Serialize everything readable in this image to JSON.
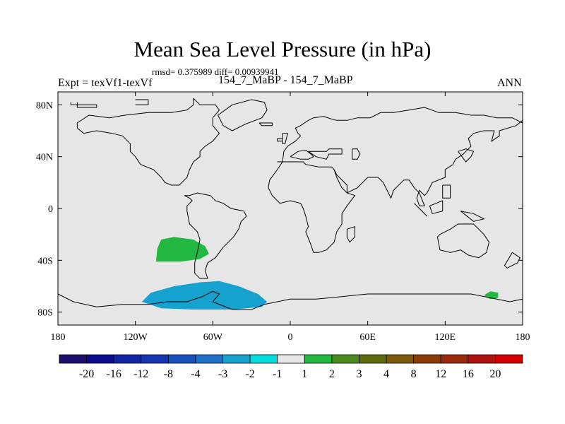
{
  "header": {
    "title": "Mean Sea Level Pressure (in hPa)",
    "stats": "rmsd= 0.375989 diff= 0.00939941",
    "experiment": "Expt = texVf1-texVf",
    "case": "154_7_MaBP - 154_7_MaBP",
    "season": "ANN"
  },
  "chart_data": {
    "type": "heatmap",
    "title": "Mean Sea Level Pressure (in hPa)",
    "projection": "cylindrical equidistant",
    "xlim": [
      -180,
      180
    ],
    "ylim": [
      -90,
      90
    ],
    "x_ticks": [
      {
        "value": -180,
        "label": "180"
      },
      {
        "value": -120,
        "label": "120W"
      },
      {
        "value": -60,
        "label": "60W"
      },
      {
        "value": 0,
        "label": "0"
      },
      {
        "value": 60,
        "label": "60E"
      },
      {
        "value": 120,
        "label": "120E"
      },
      {
        "value": 180,
        "label": "180"
      }
    ],
    "y_ticks": [
      {
        "value": 80,
        "label": "80N"
      },
      {
        "value": 40,
        "label": "40N"
      },
      {
        "value": 0,
        "label": "0"
      },
      {
        "value": -40,
        "label": "40S"
      },
      {
        "value": -80,
        "label": "80S"
      }
    ],
    "background_class": "-1 to 1",
    "anomaly_regions": [
      {
        "name": "south-pacific-positive",
        "class": "1 to 2",
        "polygon": [
          [
            -104,
            -41
          ],
          [
            -103,
            -31
          ],
          [
            -100,
            -24
          ],
          [
            -90,
            -22
          ],
          [
            -75,
            -24
          ],
          [
            -66,
            -29
          ],
          [
            -63,
            -35
          ],
          [
            -70,
            -39
          ],
          [
            -85,
            -41
          ]
        ]
      },
      {
        "name": "southern-ocean-negative",
        "class": "-3 to -2",
        "polygon": [
          [
            -115,
            -72
          ],
          [
            -108,
            -65
          ],
          [
            -90,
            -60
          ],
          [
            -70,
            -57
          ],
          [
            -55,
            -56
          ],
          [
            -40,
            -60
          ],
          [
            -25,
            -66
          ],
          [
            -18,
            -72
          ],
          [
            -22,
            -76
          ],
          [
            -45,
            -78
          ],
          [
            -75,
            -78
          ],
          [
            -100,
            -77
          ]
        ]
      },
      {
        "name": "southwest-pacific-positive",
        "class": "1 to 2",
        "polygon": [
          [
            150,
            -67
          ],
          [
            155,
            -64
          ],
          [
            161,
            -65
          ],
          [
            161,
            -69
          ],
          [
            155,
            -70
          ]
        ]
      }
    ],
    "colorbar": {
      "boundaries": [
        "-20",
        "-16",
        "-12",
        "-8",
        "-4",
        "-3",
        "-2",
        "-1",
        "1",
        "2",
        "3",
        "4",
        "8",
        "12",
        "16",
        "20"
      ],
      "colors": [
        "#1c0f6b",
        "#0a0a8c",
        "#1226a3",
        "#1536b0",
        "#1a50bd",
        "#1f70c9",
        "#15a2cf",
        "#00dede",
        "#e6e6e6",
        "#22b842",
        "#4a8a1e",
        "#5f6b0f",
        "#7a5a0a",
        "#8a3c08",
        "#992a0a",
        "#b01010",
        "#d60000"
      ]
    },
    "coastlines": [
      [
        [
          -165,
          82
        ],
        [
          -165,
          78
        ],
        [
          -150,
          78
        ],
        [
          -150,
          80
        ],
        [
          -170,
          80
        ],
        [
          -170,
          82
        ]
      ],
      [
        [
          -120,
          80
        ],
        [
          -110,
          80
        ],
        [
          -110,
          84
        ],
        [
          -120,
          84
        ]
      ],
      [
        [
          -75,
          85
        ],
        [
          -70,
          80
        ],
        [
          -58,
          80
        ],
        [
          -55,
          76
        ],
        [
          -60,
          70
        ],
        [
          -60,
          64
        ],
        [
          -55,
          58
        ],
        [
          -60,
          52
        ],
        [
          -66,
          48
        ],
        [
          -70,
          44
        ],
        [
          -70,
          40
        ],
        [
          -75,
          36
        ],
        [
          -78,
          30
        ],
        [
          -80,
          24
        ],
        [
          -86,
          18
        ],
        [
          -92,
          18
        ],
        [
          -97,
          20
        ],
        [
          -100,
          24
        ],
        [
          -106,
          30
        ],
        [
          -116,
          34
        ],
        [
          -120,
          40
        ],
        [
          -124,
          44
        ],
        [
          -124,
          50
        ],
        [
          -130,
          56
        ],
        [
          -138,
          58
        ],
        [
          -150,
          60
        ],
        [
          -160,
          58
        ],
        [
          -165,
          62
        ],
        [
          -165,
          66
        ],
        [
          -156,
          72
        ],
        [
          -140,
          70
        ],
        [
          -128,
          72
        ],
        [
          -110,
          74
        ],
        [
          -92,
          74
        ],
        [
          -80,
          76
        ],
        [
          -75,
          80
        ],
        [
          -75,
          85
        ]
      ],
      [
        [
          -82,
          10
        ],
        [
          -78,
          8
        ],
        [
          -76,
          6
        ],
        [
          -80,
          2
        ],
        [
          -80,
          -2
        ],
        [
          -78,
          -12
        ],
        [
          -72,
          -18
        ],
        [
          -70,
          -24
        ],
        [
          -72,
          -34
        ],
        [
          -74,
          -42
        ],
        [
          -74,
          -50
        ],
        [
          -70,
          -54
        ],
        [
          -64,
          -54
        ],
        [
          -66,
          -48
        ],
        [
          -64,
          -42
        ],
        [
          -58,
          -38
        ],
        [
          -52,
          -30
        ],
        [
          -44,
          -22
        ],
        [
          -40,
          -16
        ],
        [
          -38,
          -10
        ],
        [
          -34,
          -6
        ],
        [
          -36,
          -2
        ],
        [
          -46,
          0
        ],
        [
          -52,
          4
        ],
        [
          -58,
          6
        ],
        [
          -62,
          10
        ],
        [
          -72,
          12
        ],
        [
          -78,
          10
        ],
        [
          -82,
          10
        ]
      ],
      [
        [
          -45,
          80
        ],
        [
          -30,
          84
        ],
        [
          -20,
          82
        ],
        [
          -18,
          76
        ],
        [
          -22,
          70
        ],
        [
          -35,
          65
        ],
        [
          -45,
          60
        ],
        [
          -52,
          64
        ],
        [
          -56,
          72
        ],
        [
          -45,
          80
        ]
      ],
      [
        [
          -24,
          66
        ],
        [
          -22,
          64
        ],
        [
          -14,
          64
        ],
        [
          -14,
          66
        ],
        [
          -24,
          66
        ]
      ],
      [
        [
          -6,
          58
        ],
        [
          -2,
          58
        ],
        [
          -4,
          50
        ],
        [
          -6,
          50
        ],
        [
          -6,
          58
        ]
      ],
      [
        [
          -10,
          54
        ],
        [
          -6,
          54
        ],
        [
          -6,
          52
        ],
        [
          -10,
          52
        ],
        [
          -10,
          54
        ]
      ],
      [
        [
          -10,
          36
        ],
        [
          -6,
          36
        ],
        [
          -5,
          44
        ],
        [
          -2,
          48
        ],
        [
          4,
          52
        ],
        [
          8,
          56
        ],
        [
          6,
          58
        ],
        [
          4,
          62
        ],
        [
          8,
          64
        ],
        [
          14,
          68
        ],
        [
          18,
          70
        ],
        [
          26,
          71
        ],
        [
          32,
          69
        ],
        [
          36,
          68
        ],
        [
          44,
          68
        ],
        [
          52,
          70
        ],
        [
          62,
          70
        ],
        [
          70,
          74
        ],
        [
          80,
          74
        ],
        [
          92,
          76
        ],
        [
          104,
          78
        ],
        [
          115,
          74
        ],
        [
          128,
          74
        ],
        [
          140,
          72
        ],
        [
          150,
          72
        ],
        [
          160,
          70
        ],
        [
          172,
          70
        ],
        [
          180,
          66
        ]
      ],
      [
        [
          180,
          68
        ],
        [
          175,
          64
        ],
        [
          162,
          60
        ],
        [
          162,
          56
        ],
        [
          156,
          52
        ],
        [
          158,
          60
        ],
        [
          150,
          60
        ],
        [
          142,
          58
        ],
        [
          138,
          54
        ],
        [
          140,
          48
        ],
        [
          134,
          42
        ],
        [
          128,
          38
        ],
        [
          126,
          34
        ],
        [
          120,
          30
        ],
        [
          120,
          24
        ],
        [
          110,
          20
        ],
        [
          106,
          12
        ],
        [
          104,
          10
        ],
        [
          100,
          14
        ],
        [
          98,
          8
        ],
        [
          100,
          2
        ],
        [
          104,
          2
        ],
        [
          100,
          12
        ],
        [
          96,
          16
        ],
        [
          92,
          22
        ],
        [
          88,
          22
        ],
        [
          80,
          14
        ],
        [
          78,
          8
        ],
        [
          72,
          20
        ],
        [
          68,
          24
        ],
        [
          60,
          24
        ],
        [
          58,
          22
        ],
        [
          52,
          16
        ],
        [
          44,
          12
        ],
        [
          44,
          18
        ],
        [
          36,
          26
        ],
        [
          34,
          30
        ]
      ],
      [
        [
          34,
          30
        ],
        [
          32,
          32
        ],
        [
          22,
          32
        ],
        [
          12,
          34
        ],
        [
          10,
          36
        ],
        [
          -2,
          36
        ],
        [
          -8,
          36
        ],
        [
          -10,
          36
        ]
      ],
      [
        [
          -6,
          36
        ],
        [
          -10,
          30
        ],
        [
          -16,
          22
        ],
        [
          -17,
          16
        ],
        [
          -14,
          10
        ],
        [
          -8,
          4
        ],
        [
          0,
          6
        ],
        [
          8,
          4
        ],
        [
          10,
          0
        ],
        [
          12,
          -6
        ],
        [
          14,
          -14
        ],
        [
          12,
          -18
        ],
        [
          16,
          -28
        ],
        [
          18,
          -34
        ],
        [
          22,
          -34
        ],
        [
          28,
          -32
        ],
        [
          34,
          -26
        ],
        [
          36,
          -18
        ],
        [
          40,
          -12
        ],
        [
          40,
          -4
        ],
        [
          44,
          2
        ],
        [
          50,
          10
        ],
        [
          44,
          12
        ],
        [
          40,
          16
        ],
        [
          36,
          24
        ],
        [
          34,
          30
        ]
      ],
      [
        [
          44,
          -16
        ],
        [
          50,
          -14
        ],
        [
          50,
          -22
        ],
        [
          46,
          -26
        ],
        [
          44,
          -22
        ],
        [
          44,
          -16
        ]
      ],
      [
        [
          0,
          40
        ],
        [
          6,
          44
        ],
        [
          12,
          45
        ],
        [
          16,
          42
        ],
        [
          18,
          40
        ],
        [
          14,
          38
        ],
        [
          8,
          38
        ],
        [
          0,
          40
        ]
      ],
      [
        [
          14,
          44
        ],
        [
          20,
          40
        ],
        [
          28,
          38
        ],
        [
          30,
          42
        ],
        [
          40,
          42
        ],
        [
          40,
          46
        ],
        [
          30,
          46
        ],
        [
          28,
          44
        ],
        [
          14,
          44
        ]
      ],
      [
        [
          48,
          46
        ],
        [
          52,
          46
        ],
        [
          54,
          42
        ],
        [
          52,
          38
        ],
        [
          48,
          38
        ],
        [
          48,
          46
        ]
      ],
      [
        [
          130,
          44
        ],
        [
          136,
          36
        ],
        [
          140,
          40
        ],
        [
          142,
          44
        ],
        [
          136,
          46
        ],
        [
          130,
          44
        ]
      ],
      [
        [
          114,
          -22
        ],
        [
          116,
          -32
        ],
        [
          124,
          -34
        ],
        [
          132,
          -32
        ],
        [
          138,
          -36
        ],
        [
          146,
          -38
        ],
        [
          152,
          -34
        ],
        [
          154,
          -26
        ],
        [
          150,
          -20
        ],
        [
          146,
          -16
        ],
        [
          142,
          -12
        ],
        [
          136,
          -12
        ],
        [
          130,
          -12
        ],
        [
          124,
          -16
        ],
        [
          116,
          -20
        ],
        [
          114,
          -22
        ]
      ],
      [
        [
          172,
          -34
        ],
        [
          178,
          -38
        ],
        [
          176,
          -42
        ],
        [
          168,
          -46
        ],
        [
          166,
          -44
        ],
        [
          172,
          -34
        ]
      ],
      [
        [
          96,
          4
        ],
        [
          104,
          -4
        ],
        [
          106,
          -6
        ],
        [
          100,
          0
        ],
        [
          96,
          4
        ]
      ],
      [
        [
          108,
          2
        ],
        [
          118,
          6
        ],
        [
          118,
          -2
        ],
        [
          110,
          -4
        ],
        [
          108,
          2
        ]
      ],
      [
        [
          132,
          -2
        ],
        [
          142,
          -4
        ],
        [
          150,
          -8
        ],
        [
          142,
          -10
        ],
        [
          132,
          -2
        ]
      ],
      [
        [
          118,
          18
        ],
        [
          124,
          18
        ],
        [
          124,
          8
        ],
        [
          118,
          8
        ],
        [
          118,
          18
        ]
      ],
      [
        [
          -180,
          -66
        ],
        [
          -168,
          -72
        ],
        [
          -150,
          -76
        ],
        [
          -130,
          -74
        ],
        [
          -110,
          -74
        ],
        [
          -95,
          -72
        ],
        [
          -80,
          -72
        ],
        [
          -68,
          -68
        ],
        [
          -60,
          -64
        ],
        [
          -55,
          -66
        ],
        [
          -60,
          -72
        ],
        [
          -45,
          -78
        ],
        [
          -30,
          -78
        ],
        [
          -20,
          -74
        ],
        [
          0,
          -70
        ],
        [
          20,
          -70
        ],
        [
          40,
          -68
        ],
        [
          60,
          -66
        ],
        [
          80,
          -66
        ],
        [
          100,
          -66
        ],
        [
          120,
          -66
        ],
        [
          140,
          -66
        ],
        [
          160,
          -70
        ],
        [
          170,
          -72
        ],
        [
          180,
          -70
        ]
      ]
    ]
  }
}
